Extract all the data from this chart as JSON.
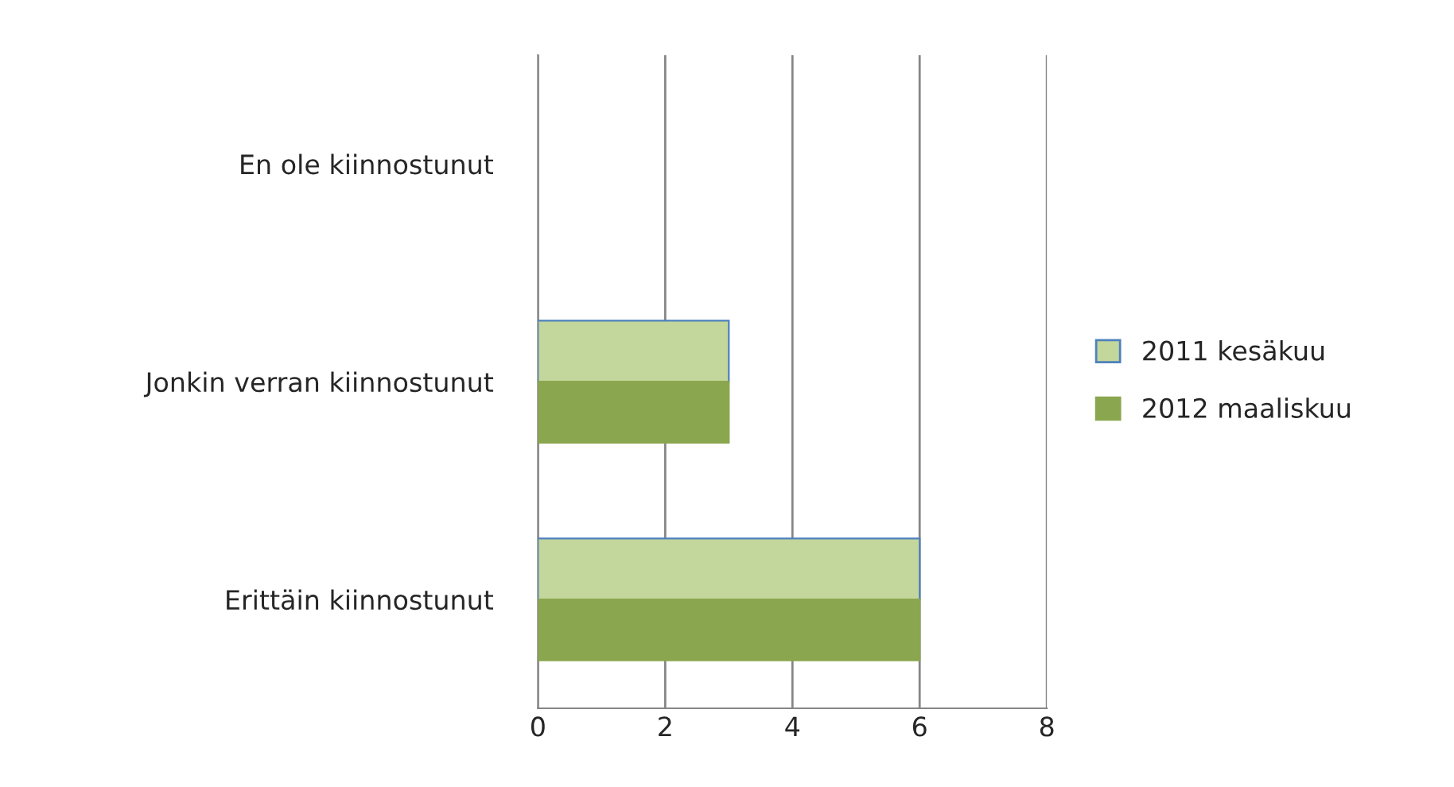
{
  "chart_data": {
    "type": "bar",
    "orientation": "horizontal",
    "categories": [
      "En ole kiinnostunut",
      "Jonkin verran kiinnostunut",
      "Erittäin kiinnostunut"
    ],
    "series": [
      {
        "name": "2011 kesäkuu",
        "color": "#c3d69b",
        "values": [
          0,
          3,
          6
        ]
      },
      {
        "name": "2012 maaliskuu",
        "color": "#8aa64f",
        "values": [
          0,
          3,
          6
        ]
      }
    ],
    "xlim": [
      0,
      8
    ],
    "xticks": [
      0,
      2,
      4,
      6,
      8
    ],
    "grid": "x",
    "legend": "right"
  }
}
